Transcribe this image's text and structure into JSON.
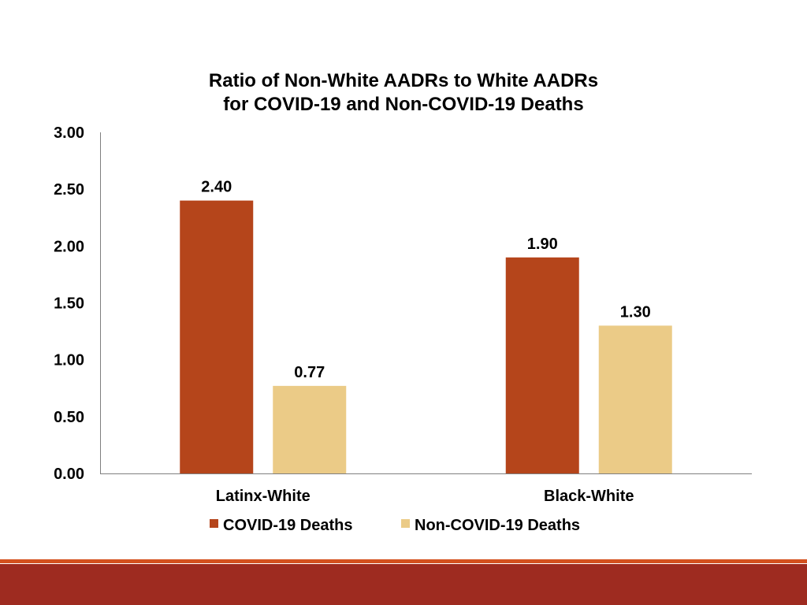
{
  "chart_data": {
    "type": "bar",
    "title": "Ratio of Non-White AADRs to White AADRs",
    "subtitle": "for COVID-19 and Non-COVID-19 Deaths",
    "categories": [
      "Latinx-White",
      "Black-White"
    ],
    "series": [
      {
        "name": "COVID-19 Deaths",
        "color": "#B5451B",
        "values": [
          2.4,
          1.9
        ],
        "labels": [
          "2.40",
          "1.90"
        ]
      },
      {
        "name": "Non-COVID-19 Deaths",
        "color": "#EBCB87",
        "values": [
          0.77,
          1.3
        ],
        "labels": [
          "0.77",
          "1.30"
        ]
      }
    ],
    "ylim": [
      0,
      3
    ],
    "yticks": [
      0,
      0.5,
      1,
      1.5,
      2,
      2.5,
      3
    ],
    "ytick_labels": [
      "0.00",
      "0.50",
      "1.00",
      "1.50",
      "2.00",
      "2.50",
      "3.00"
    ],
    "grid": false,
    "legend_position": "bottom"
  },
  "footer": {
    "band_color": "#9E2B20",
    "line_color": "#D4511E"
  }
}
